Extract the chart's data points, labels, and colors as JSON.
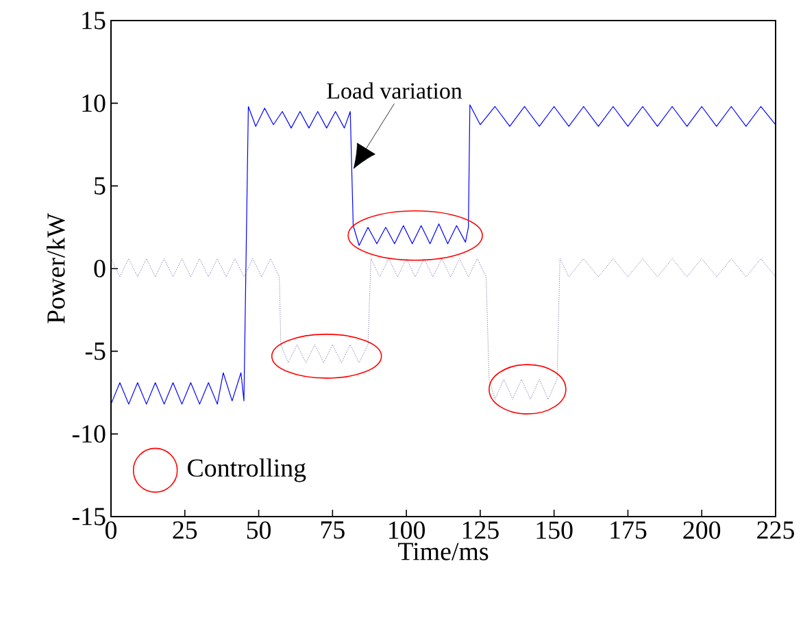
{
  "chart_data": {
    "type": "line",
    "xlabel": "Time/ms",
    "ylabel": "Power/kW",
    "xlim": [
      0,
      225
    ],
    "xticks": [
      0,
      25,
      50,
      75,
      100,
      125,
      150,
      175,
      200,
      225
    ],
    "ylim": [
      -15,
      15
    ],
    "yticks": [
      -15,
      -10,
      -5,
      0,
      5,
      10,
      15
    ],
    "grid": false,
    "marker": "none",
    "annotations": [
      "Load variation",
      "Controlling"
    ],
    "series": [
      {
        "color": "#0000ff",
        "line_style": "solid",
        "x": [
          0,
          3,
          6,
          9,
          12,
          15,
          18,
          21,
          24,
          27,
          30,
          33,
          36,
          38,
          41,
          44,
          45,
          46.5,
          49,
          52,
          55,
          58,
          61,
          64,
          67,
          70,
          73,
          76,
          79,
          81,
          82,
          84,
          87,
          90,
          93,
          96,
          99,
          102,
          105,
          108,
          111,
          114,
          117,
          120,
          121,
          121.5,
          125,
          130,
          135,
          140,
          145,
          150,
          155,
          160,
          165,
          170,
          175,
          180,
          185,
          190,
          195,
          200,
          205,
          210,
          215,
          220,
          225
        ],
        "values": [
          -8.2,
          -6.9,
          -8.2,
          -6.9,
          -8.2,
          -6.9,
          -8.2,
          -6.9,
          -8.2,
          -6.9,
          -8.2,
          -6.9,
          -8.2,
          -6.3,
          -8.0,
          -6.3,
          -8.0,
          9.8,
          8.6,
          9.7,
          8.7,
          9.5,
          8.5,
          9.5,
          8.5,
          9.5,
          8.5,
          9.5,
          8.5,
          9.5,
          2.6,
          1.4,
          2.5,
          1.5,
          2.5,
          1.5,
          2.6,
          1.5,
          2.6,
          1.5,
          2.7,
          1.5,
          2.6,
          1.6,
          2.5,
          9.9,
          8.7,
          9.8,
          8.6,
          9.8,
          8.6,
          9.8,
          8.6,
          9.8,
          8.6,
          9.8,
          8.6,
          9.8,
          8.6,
          9.8,
          8.6,
          9.8,
          8.6,
          9.8,
          8.6,
          9.8,
          8.7
        ]
      },
      {
        "color": "#5a5a9a",
        "line_style": "dotted",
        "x": [
          0,
          3,
          6,
          9,
          12,
          15,
          18,
          21,
          24,
          27,
          30,
          33,
          36,
          39,
          42,
          45,
          48,
          51,
          54,
          57,
          57.5,
          60,
          63,
          66,
          69,
          72,
          75,
          78,
          81,
          84,
          87,
          88,
          91,
          94,
          97,
          100,
          103,
          106,
          109,
          112,
          115,
          118,
          121,
          124,
          127,
          128,
          130,
          133,
          136,
          139,
          142,
          145,
          148,
          151,
          152,
          155,
          160,
          165,
          170,
          175,
          180,
          185,
          190,
          195,
          200,
          205,
          210,
          215,
          220,
          225
        ],
        "values": [
          0.6,
          -0.5,
          0.6,
          -0.5,
          0.6,
          -0.5,
          0.6,
          -0.5,
          0.6,
          -0.5,
          0.6,
          -0.5,
          0.6,
          -0.5,
          0.6,
          -0.5,
          0.6,
          -0.5,
          0.6,
          -0.5,
          -4.6,
          -5.7,
          -4.6,
          -5.7,
          -4.6,
          -5.7,
          -4.6,
          -5.7,
          -4.6,
          -5.7,
          -4.6,
          0.6,
          -0.5,
          0.6,
          -0.5,
          0.6,
          -0.5,
          0.6,
          -0.5,
          0.6,
          -0.5,
          0.6,
          -0.5,
          0.6,
          -0.5,
          -6.7,
          -7.9,
          -6.7,
          -7.9,
          -6.7,
          -7.9,
          -6.7,
          -7.9,
          -6.7,
          0.6,
          -0.5,
          0.6,
          -0.5,
          0.6,
          -0.5,
          0.6,
          -0.5,
          0.6,
          -0.5,
          0.6,
          -0.5,
          0.6,
          -0.5,
          0.6,
          -0.5
        ]
      }
    ]
  }
}
